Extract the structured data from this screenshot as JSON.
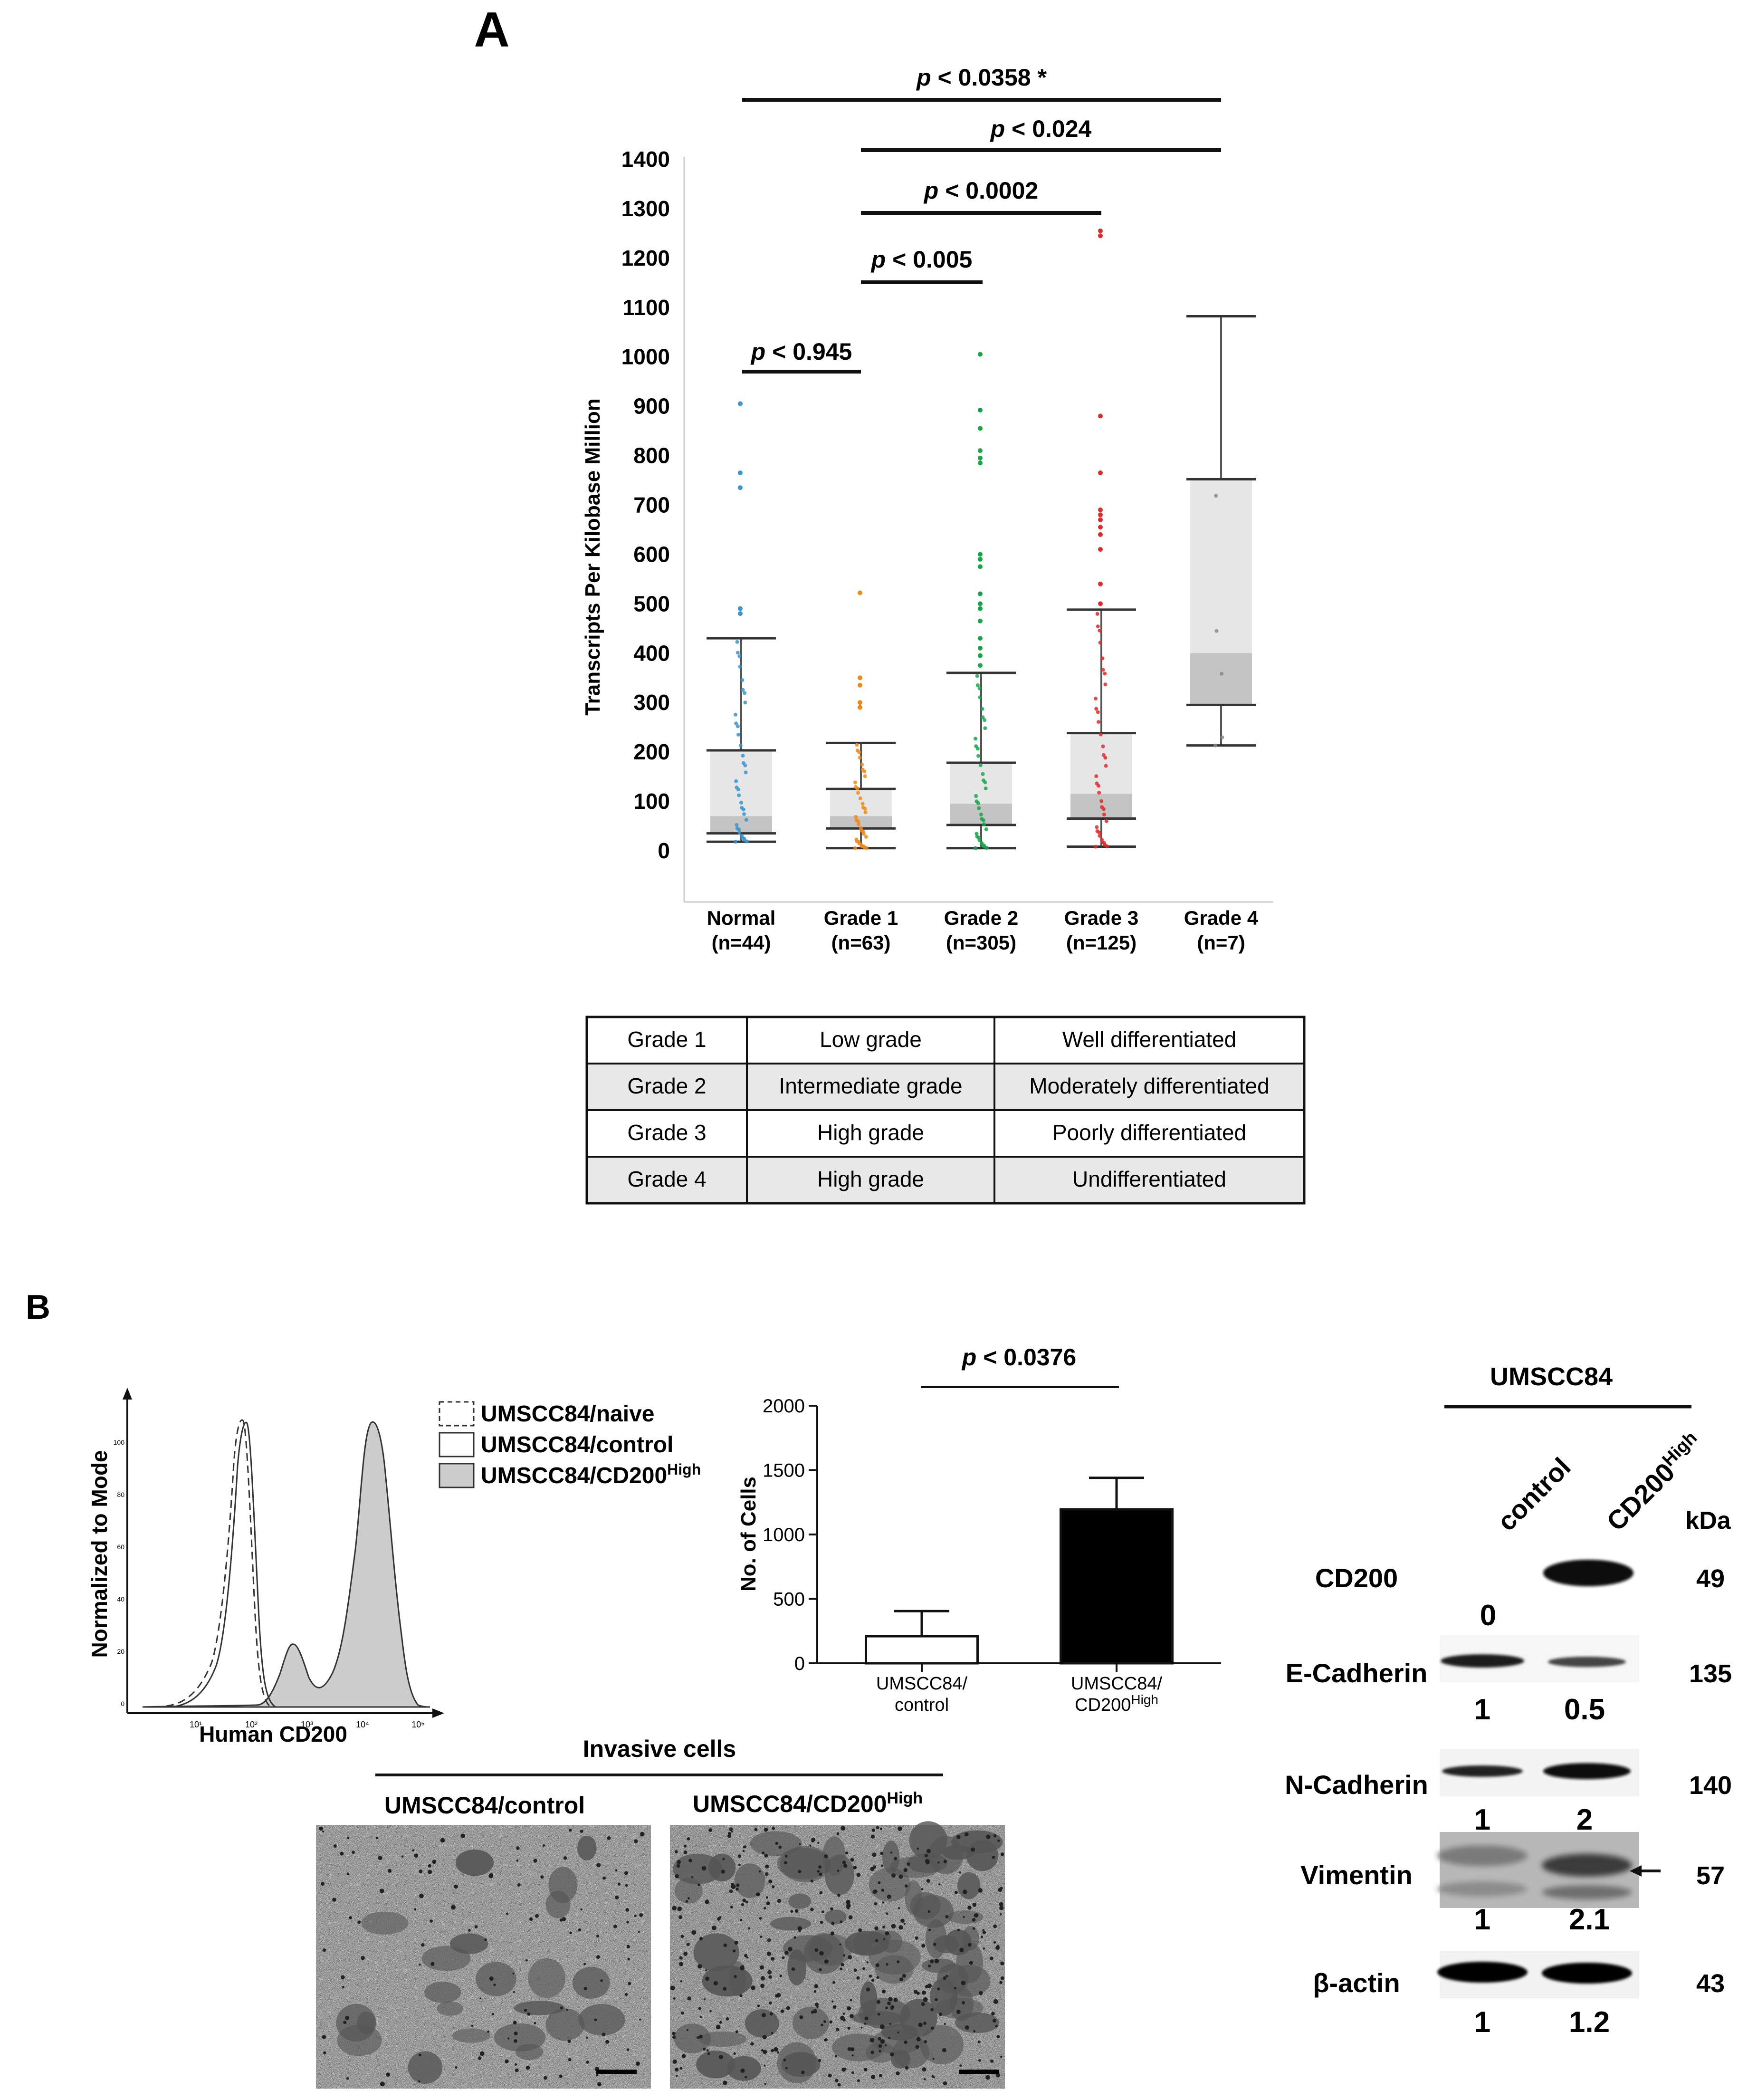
{
  "panel_a": {
    "label": "A",
    "legend_table": [
      [
        "Grade 1",
        "Low grade",
        "Well differentiated"
      ],
      [
        "Grade 2",
        "Intermediate grade",
        "Moderately differentiated"
      ],
      [
        "Grade 3",
        "High grade",
        "Poorly differentiated"
      ],
      [
        "Grade 4",
        "High grade",
        "Undifferentiated"
      ]
    ]
  },
  "panel_b": {
    "label": "B",
    "flow": {
      "ylabel": "Normalized to Mode",
      "xlabel": "Human CD200",
      "yticks": [
        "0",
        "20",
        "40",
        "60",
        "80",
        "100"
      ],
      "xticks": [
        "10¹",
        "10²",
        "10³",
        "10⁴",
        "10⁵"
      ],
      "legend": [
        {
          "label": "UMSCC84/naive",
          "style": "dashed"
        },
        {
          "label": "UMSCC84/control",
          "style": "open"
        },
        {
          "label": "UMSCC84/CD200",
          "sup": "High",
          "style": "filled"
        }
      ]
    },
    "invasive": {
      "title": "Invasive cells",
      "left_label": "UMSCC84/control",
      "right_label": "UMSCC84/CD200",
      "right_sup": "High"
    },
    "western": {
      "cell_line": "UMSCC84",
      "lanes": [
        "control",
        "CD200"
      ],
      "lane2_sup": "High",
      "unit": "kDa",
      "rows": [
        {
          "name": "CD200",
          "kda": "49",
          "values": [
            "0",
            ""
          ]
        },
        {
          "name": "E-Cadherin",
          "kda": "135",
          "values": [
            "1",
            "0.5"
          ]
        },
        {
          "name": "N-Cadherin",
          "kda": "140",
          "values": [
            "1",
            "2"
          ]
        },
        {
          "name": "Vimentin",
          "kda": "57",
          "values": [
            "1",
            "2.1"
          ]
        },
        {
          "name": "β-actin",
          "kda": "43",
          "values": [
            "1",
            "1.2"
          ]
        }
      ]
    }
  },
  "chart_data": [
    {
      "type": "box",
      "ylabel": "Transcripts Per Kilobase Million",
      "ylim": [
        0,
        1400
      ],
      "yticks": [
        0,
        100,
        200,
        300,
        400,
        500,
        600,
        700,
        800,
        900,
        1000,
        1100,
        1200,
        1300,
        1400
      ],
      "categories": [
        "Normal",
        "Grade 1",
        "Grade 2",
        "Grade 3",
        "Grade 4"
      ],
      "counts": [
        "(n=44)",
        "(n=63)",
        "(n=305)",
        "(n=125)",
        "(n=7)"
      ],
      "colors": [
        "#3a95cc",
        "#f08a1c",
        "#19a64b",
        "#e02a2a",
        "#888888"
      ],
      "boxes": [
        {
          "min": 18,
          "q1": 35,
          "median": 70,
          "q3": 203,
          "max": 430
        },
        {
          "min": 5,
          "q1": 45,
          "median": 70,
          "q3": 125,
          "max": 218
        },
        {
          "min": 5,
          "q1": 52,
          "median": 95,
          "q3": 178,
          "max": 360
        },
        {
          "min": 8,
          "q1": 65,
          "median": 115,
          "q3": 238,
          "max": 488
        },
        {
          "min": 213,
          "q1": 295,
          "median": 400,
          "q3": 752,
          "max": 1082
        }
      ],
      "outliers": [
        [
          905,
          765,
          735,
          490,
          480
        ],
        [
          522,
          350,
          335,
          300,
          290
        ],
        [
          1005,
          892,
          855,
          810,
          795,
          785,
          600,
          590,
          575,
          520,
          500,
          490,
          465,
          430,
          410,
          395,
          375
        ],
        [
          1255,
          1245,
          880,
          765,
          690,
          680,
          670,
          655,
          640,
          610,
          540,
          500
        ],
        []
      ],
      "comparisons": [
        {
          "label": "p < 0.0358",
          "mark": "*",
          "from": 0,
          "to": 4
        },
        {
          "label": "p < 0.024",
          "from": 1,
          "to": 4
        },
        {
          "label": "p < 0.0002",
          "from": 1,
          "to": 3
        },
        {
          "label": "p < 0.005",
          "from": 1,
          "to": 2
        },
        {
          "label": "p < 0.945",
          "from": 0,
          "to": 1
        }
      ]
    },
    {
      "type": "bar",
      "ylabel": "No. of Cells",
      "ylim": [
        0,
        2000
      ],
      "yticks": [
        0,
        500,
        1000,
        1500,
        2000
      ],
      "categories": [
        "UMSCC84/ control",
        "UMSCC84/ CD200High"
      ],
      "category_lines": [
        [
          "UMSCC84/",
          "control"
        ],
        [
          "UMSCC84/",
          "CD200",
          "High"
        ]
      ],
      "values": [
        210,
        1195
      ],
      "errors": [
        195,
        245
      ],
      "fills": [
        "#ffffff",
        "#000000"
      ],
      "comparison": {
        "label": "p < 0.0376"
      }
    }
  ]
}
